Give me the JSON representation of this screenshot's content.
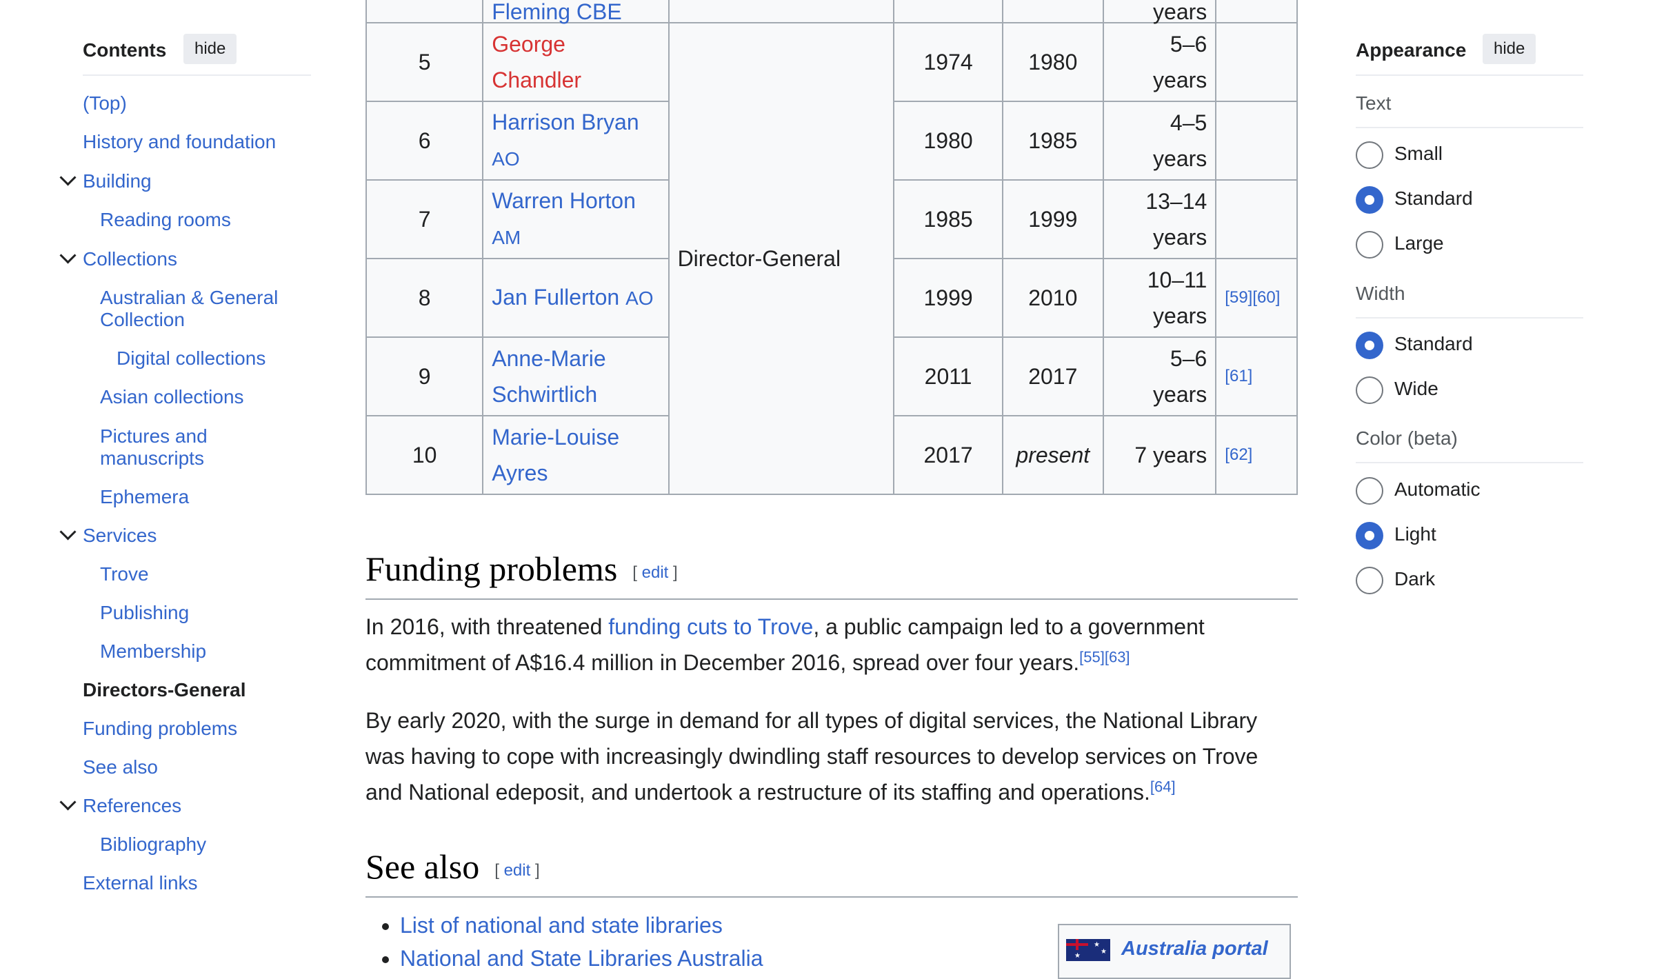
{
  "toc": {
    "title": "Contents",
    "hide_label": "hide",
    "items": [
      {
        "label": "(Top)"
      },
      {
        "label": "History and foundation"
      },
      {
        "label": "Building"
      },
      {
        "label": "Reading rooms"
      },
      {
        "label": "Collections"
      },
      {
        "label": "Australian & General Collection"
      },
      {
        "label": "Digital collections"
      },
      {
        "label": "Asian collections"
      },
      {
        "label": "Pictures and manuscripts"
      },
      {
        "label": "Ephemera"
      },
      {
        "label": "Services"
      },
      {
        "label": "Trove"
      },
      {
        "label": "Publishing"
      },
      {
        "label": "Membership"
      },
      {
        "label": "Directors-General"
      },
      {
        "label": "Funding problems"
      },
      {
        "label": "See also"
      },
      {
        "label": "References"
      },
      {
        "label": "Bibliography"
      },
      {
        "label": "External links"
      }
    ]
  },
  "table": {
    "partial_top": {
      "name": "Fleming CBE",
      "duration": "years"
    },
    "post": "Director-General",
    "rows": [
      {
        "num": "5",
        "name": "George Chandler",
        "postnom": "",
        "from": "1974",
        "to": "1980",
        "duration": "5–6 years",
        "refs": ""
      },
      {
        "num": "6",
        "name": "Harrison Bryan",
        "postnom": "AO",
        "from": "1980",
        "to": "1985",
        "duration": "4–5 years",
        "refs": ""
      },
      {
        "num": "7",
        "name": "Warren Horton",
        "postnom": "AM",
        "from": "1985",
        "to": "1999",
        "duration": "13–14 years",
        "refs": ""
      },
      {
        "num": "8",
        "name": "Jan Fullerton",
        "postnom": "AO",
        "from": "1999",
        "to": "2010",
        "duration": "10–11 years",
        "refs": "[59][60]"
      },
      {
        "num": "9",
        "name": "Anne-Marie Schwirtlich",
        "postnom": "",
        "from": "2011",
        "to": "2017",
        "duration": "5–6 years",
        "refs": "[61]"
      },
      {
        "num": "10",
        "name": "Marie-Louise Ayres",
        "postnom": "",
        "from": "2017",
        "to": "present",
        "duration": "7 years",
        "refs": "[62]"
      }
    ]
  },
  "funding": {
    "heading": "Funding problems",
    "edit": "edit",
    "p1_before": "In 2016, with threatened ",
    "p1_link": "funding cuts to Trove",
    "p1_after": ", a public campaign led to a government commitment of A$16.4 million in December 2016, spread over four years.",
    "p1_ref": "[55][63]",
    "p2": "By early 2020, with the surge in demand for all types of digital services, the National Library was having to cope with increasingly dwindling staff resources to develop services on Trove and National edeposit, and undertook a restructure of its staffing and operations.",
    "p2_ref": "[64]"
  },
  "see_also": {
    "heading": "See also",
    "edit": "edit",
    "items": [
      "List of national and state libraries",
      "National and State Libraries Australia"
    ],
    "portal": "Australia portal"
  },
  "appearance": {
    "title": "Appearance",
    "hide_label": "hide",
    "text_label": "Text",
    "text_options": [
      "Small",
      "Standard",
      "Large"
    ],
    "text_selected": "Standard",
    "width_label": "Width",
    "width_options": [
      "Standard",
      "Wide"
    ],
    "width_selected": "Standard",
    "color_label": "Color (beta)",
    "color_options": [
      "Automatic",
      "Light",
      "Dark"
    ],
    "color_selected": "Light"
  },
  "colors": {
    "link": "#3366cc",
    "redlink": "#d73333",
    "accent": "#3366cc",
    "text": "#202122"
  }
}
